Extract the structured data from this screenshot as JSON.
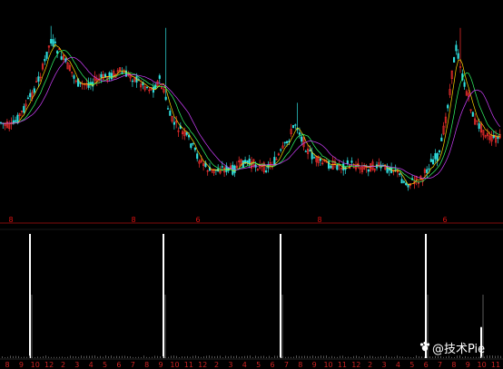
{
  "watermark": {
    "text": "@技术Pie",
    "icon": "paw-icon"
  },
  "colors": {
    "background": "#000000",
    "up": "#ff3030",
    "down": "#30e0e0",
    "ma1": "#ffd700",
    "ma2": "#33ff66",
    "ma3": "#d040ff",
    "separator": "#aa1111",
    "volume_spike": "#ffffff"
  },
  "chart_data": [
    {
      "type": "line",
      "title": "",
      "panel": "price-candlestick",
      "x": [
        0,
        12,
        24,
        36,
        48,
        56,
        64,
        72,
        80,
        88,
        96,
        108,
        120,
        132,
        144,
        156,
        168,
        176,
        182,
        188,
        196,
        208,
        220,
        232,
        244,
        256,
        268,
        280,
        292,
        304,
        316,
        322,
        326,
        332,
        340,
        352,
        364,
        376,
        388,
        400,
        412,
        424,
        436,
        440,
        446,
        456,
        466,
        474,
        484,
        492,
        498,
        502,
        506,
        510,
        516,
        522,
        530,
        540,
        554
      ],
      "values": [
        0.55,
        0.58,
        0.5,
        0.4,
        0.26,
        0.12,
        0.18,
        0.24,
        0.3,
        0.36,
        0.35,
        0.33,
        0.31,
        0.29,
        0.31,
        0.35,
        0.38,
        0.33,
        0.42,
        0.53,
        0.58,
        0.64,
        0.75,
        0.81,
        0.79,
        0.8,
        0.76,
        0.77,
        0.79,
        0.75,
        0.66,
        0.59,
        0.55,
        0.63,
        0.71,
        0.76,
        0.77,
        0.78,
        0.77,
        0.79,
        0.78,
        0.79,
        0.79,
        0.83,
        0.87,
        0.86,
        0.84,
        0.76,
        0.72,
        0.5,
        0.3,
        0.16,
        0.22,
        0.34,
        0.42,
        0.54,
        0.58,
        0.64,
        0.63
      ],
      "highs": [
        [
          56,
          0.05
        ],
        [
          182,
          0.06
        ],
        [
          328,
          0.45
        ],
        [
          508,
          0.06
        ]
      ],
      "x_ticks": [
        "8",
        "9",
        "10",
        "12",
        "2",
        "3",
        "4",
        "5",
        "6",
        "7",
        "8",
        "9",
        "10",
        "11",
        "12",
        "2",
        "3",
        "4",
        "5",
        "6",
        "7",
        "8",
        "9",
        "10",
        "11",
        "12",
        "2",
        "3",
        "4",
        "5",
        "6",
        "7",
        "8",
        "9",
        "10",
        "11"
      ],
      "period_markers": [
        "8",
        "8",
        "6",
        "8",
        "6"
      ]
    },
    {
      "type": "bar",
      "title": "",
      "panel": "volume",
      "spikes_x": [
        33,
        180,
        309,
        469,
        530
      ],
      "spikes_value": [
        1.0,
        1.0,
        1.0,
        1.0,
        0.25
      ],
      "x_ticks": [
        "8",
        "9",
        "10",
        "12",
        "2",
        "3",
        "4",
        "5",
        "6",
        "7",
        "8",
        "9",
        "10",
        "11",
        "12",
        "2",
        "3",
        "4",
        "5",
        "6",
        "7",
        "8",
        "9",
        "10",
        "11",
        "12",
        "2",
        "3",
        "4",
        "5",
        "6",
        "7",
        "8",
        "9",
        "10",
        "11"
      ]
    }
  ]
}
